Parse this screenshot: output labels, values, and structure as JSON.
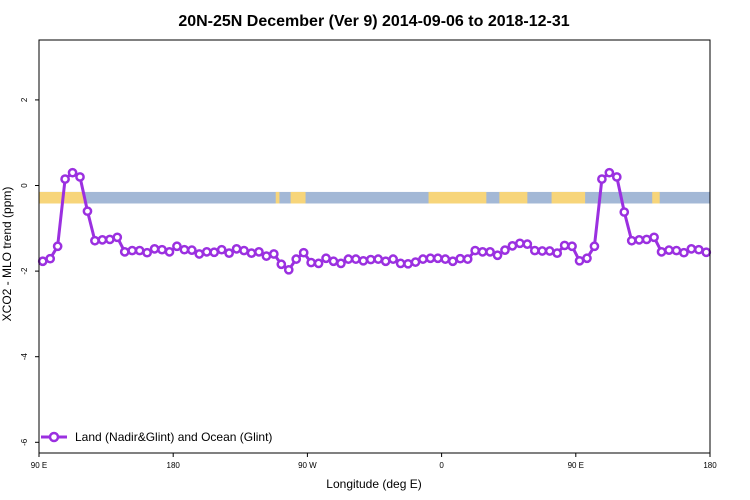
{
  "chart_data": {
    "type": "line",
    "title": "20N-25N December (Ver 9)   2014-09-06 to 2018-12-31",
    "xlabel": "Longitude (deg E)",
    "ylabel": "XCO2 - MLO trend (ppm)",
    "xlim": [
      90,
      450
    ],
    "ylim": [
      -6.25,
      3.4
    ],
    "x_ticks": [
      {
        "value": 90,
        "label": "90 E"
      },
      {
        "value": 162,
        "label": "180"
      },
      {
        "value": 234,
        "label": "90 W"
      },
      {
        "value": 306,
        "label": "0"
      },
      {
        "value": 378,
        "label": "90 E"
      },
      {
        "value": 450,
        "label": "180"
      }
    ],
    "y_ticks": [
      {
        "value": 2,
        "label": "2"
      },
      {
        "value": 0,
        "label": "0"
      },
      {
        "value": -2,
        "label": "-2"
      },
      {
        "value": -4,
        "label": "-4"
      },
      {
        "value": -6,
        "label": "-6"
      }
    ],
    "grid": false,
    "legend_position": "bottom-left",
    "land_ocean_band": {
      "y_range": [
        -0.42,
        -0.15
      ],
      "ocean_color": "#a3b8d6",
      "land_color": "#f7d57a",
      "land_segments": [
        [
          90,
          114
        ],
        [
          217,
          219
        ],
        [
          225,
          233
        ],
        [
          299,
          330
        ],
        [
          337,
          352
        ],
        [
          365,
          383
        ],
        [
          419,
          423
        ]
      ]
    },
    "series": [
      {
        "name": "Land (Nadir&Glint) and Ocean (Glint)",
        "color": "#9b30e0",
        "x": [
          92,
          96,
          100,
          104,
          108,
          112,
          116,
          120,
          124,
          128,
          132,
          136,
          140,
          144,
          148,
          152,
          156,
          160,
          164,
          168,
          172,
          176,
          180,
          184,
          188,
          192,
          196,
          200,
          204,
          208,
          212,
          216,
          220,
          224,
          228,
          232,
          236,
          240,
          244,
          248,
          252,
          256,
          260,
          264,
          268,
          272,
          276,
          280,
          284,
          288,
          292,
          296,
          300,
          304,
          308,
          312,
          316,
          320,
          324,
          328,
          332,
          336,
          340,
          344,
          348,
          352,
          356,
          360,
          364,
          368,
          372,
          376,
          380,
          384,
          388,
          392,
          396,
          400,
          404,
          408,
          412,
          416,
          420,
          424,
          428,
          432,
          436,
          440,
          444,
          448
        ],
        "values": [
          -1.77,
          -1.71,
          -1.42,
          0.15,
          0.3,
          0.2,
          -0.6,
          -1.29,
          -1.27,
          -1.26,
          -1.21,
          -1.55,
          -1.52,
          -1.52,
          -1.57,
          -1.48,
          -1.5,
          -1.55,
          -1.42,
          -1.5,
          -1.51,
          -1.6,
          -1.55,
          -1.56,
          -1.5,
          -1.58,
          -1.48,
          -1.52,
          -1.58,
          -1.55,
          -1.65,
          -1.6,
          -1.84,
          -1.97,
          -1.72,
          -1.57,
          -1.8,
          -1.82,
          -1.7,
          -1.77,
          -1.82,
          -1.72,
          -1.72,
          -1.76,
          -1.73,
          -1.72,
          -1.77,
          -1.72,
          -1.82,
          -1.83,
          -1.79,
          -1.72,
          -1.7,
          -1.7,
          -1.72,
          -1.77,
          -1.71,
          -1.72,
          -1.52,
          -1.55,
          -1.55,
          -1.63,
          -1.51,
          -1.41,
          -1.35,
          -1.37,
          -1.52,
          -1.53,
          -1.53,
          -1.58,
          -1.4,
          -1.42,
          -1.76,
          -1.7,
          -1.42,
          0.15,
          0.3,
          0.2,
          -0.62,
          -1.29,
          -1.27,
          -1.26,
          -1.21,
          -1.55,
          -1.51,
          -1.52,
          -1.57,
          -1.48,
          -1.5,
          -1.56
        ]
      }
    ]
  }
}
